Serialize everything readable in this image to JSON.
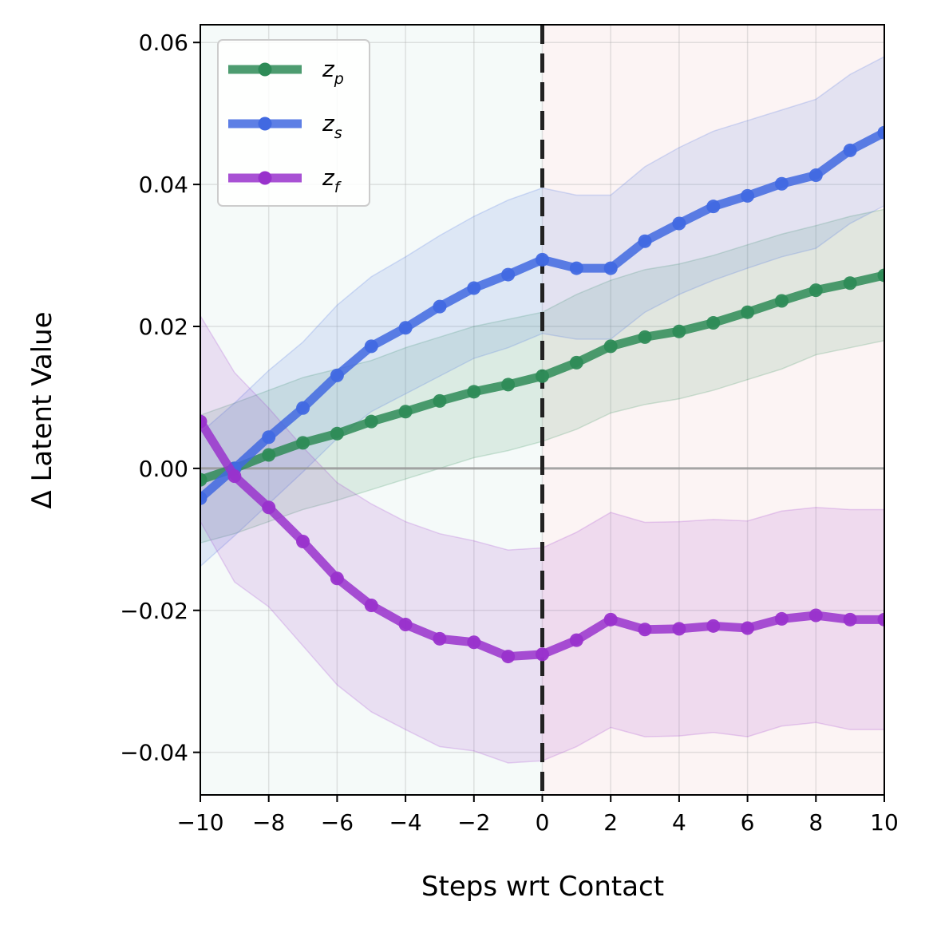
{
  "chart_data": {
    "type": "line",
    "xlabel": "Steps wrt Contact",
    "ylabel": "Δ Latent Value",
    "xlim": [
      -10,
      10
    ],
    "ylim": [
      -0.046,
      0.0625
    ],
    "x_ticks": [
      -10,
      -8,
      -6,
      -4,
      -2,
      0,
      2,
      4,
      6,
      8,
      10
    ],
    "x_tick_labels": [
      "−10",
      "−8",
      "−6",
      "−4",
      "−2",
      "0",
      "2",
      "4",
      "6",
      "8",
      "10"
    ],
    "y_ticks": [
      -0.04,
      -0.02,
      0.0,
      0.02,
      0.04,
      0.06
    ],
    "y_tick_labels": [
      "−0.04",
      "−0.02",
      "0.00",
      "0.02",
      "0.04",
      "0.06"
    ],
    "grid": true,
    "legend_position": "top-left",
    "contact_step": 0,
    "reference_line_y": 0,
    "regions": [
      {
        "name": "pre-contact",
        "x_range": [
          -10,
          0
        ],
        "color": "#e6f3f0"
      },
      {
        "name": "post-contact",
        "x_range": [
          0,
          10
        ],
        "color": "#f8e4e4"
      }
    ],
    "x": [
      -10,
      -9,
      -8,
      -7,
      -6,
      -5,
      -4,
      -3,
      -2,
      -1,
      0,
      1,
      2,
      3,
      4,
      5,
      6,
      7,
      8,
      9,
      10
    ],
    "series": [
      {
        "name": "z_p",
        "legend_main": "z",
        "legend_sub": "p",
        "color": "#2e8b57",
        "values": [
          -0.0016,
          0.0,
          0.0019,
          0.0036,
          0.0049,
          0.0066,
          0.008,
          0.0095,
          0.0108,
          0.0118,
          0.013,
          0.0149,
          0.0172,
          0.0185,
          0.0193,
          0.0205,
          0.022,
          0.0236,
          0.0251,
          0.0261,
          0.0272
        ],
        "upper": [
          0.0075,
          0.0092,
          0.011,
          0.0128,
          0.014,
          0.0152,
          0.017,
          0.0185,
          0.02,
          0.021,
          0.022,
          0.0245,
          0.0265,
          0.028,
          0.0288,
          0.03,
          0.0315,
          0.033,
          0.0342,
          0.0355,
          0.0365
        ],
        "lower": [
          -0.0105,
          -0.0092,
          -0.0075,
          -0.0058,
          -0.0045,
          -0.003,
          -0.0015,
          0.0,
          0.0015,
          0.0025,
          0.0038,
          0.0055,
          0.0078,
          0.009,
          0.0098,
          0.011,
          0.0125,
          0.014,
          0.016,
          0.017,
          0.018
        ]
      },
      {
        "name": "z_s",
        "legend_main": "z",
        "legend_sub": "s",
        "color": "#4169e1",
        "values": [
          -0.0042,
          0.0,
          0.0044,
          0.0085,
          0.0131,
          0.0172,
          0.0198,
          0.0228,
          0.0254,
          0.0273,
          0.0294,
          0.0282,
          0.0282,
          0.032,
          0.0345,
          0.0369,
          0.0384,
          0.0401,
          0.0413,
          0.0448,
          0.0473
        ],
        "upper": [
          0.005,
          0.0092,
          0.0138,
          0.0178,
          0.023,
          0.027,
          0.0298,
          0.0328,
          0.0355,
          0.0378,
          0.0395,
          0.0385,
          0.0385,
          0.0425,
          0.0452,
          0.0475,
          0.049,
          0.0505,
          0.052,
          0.0555,
          0.058
        ],
        "lower": [
          -0.0138,
          -0.0095,
          -0.005,
          -0.0005,
          0.0042,
          0.008,
          0.0105,
          0.013,
          0.0155,
          0.017,
          0.019,
          0.0182,
          0.0182,
          0.022,
          0.0245,
          0.0265,
          0.0282,
          0.0298,
          0.031,
          0.0345,
          0.037
        ]
      },
      {
        "name": "z_f",
        "legend_main": "z",
        "legend_sub": "f",
        "color": "#9932cc",
        "values": [
          0.0066,
          -0.0011,
          -0.0055,
          -0.0103,
          -0.0155,
          -0.0193,
          -0.022,
          -0.024,
          -0.0245,
          -0.0265,
          -0.0262,
          -0.0242,
          -0.0213,
          -0.0227,
          -0.0226,
          -0.0222,
          -0.0225,
          -0.0212,
          -0.0207,
          -0.0213,
          -0.0213
        ],
        "upper": [
          0.0215,
          0.0135,
          0.0085,
          0.003,
          -0.002,
          -0.005,
          -0.0075,
          -0.0092,
          -0.0102,
          -0.0115,
          -0.0112,
          -0.009,
          -0.0062,
          -0.0076,
          -0.0075,
          -0.0072,
          -0.0074,
          -0.006,
          -0.0055,
          -0.0058,
          -0.0058
        ],
        "lower": [
          -0.0075,
          -0.016,
          -0.0195,
          -0.025,
          -0.0305,
          -0.0343,
          -0.0368,
          -0.0392,
          -0.0398,
          -0.0415,
          -0.0412,
          -0.0392,
          -0.0365,
          -0.0378,
          -0.0377,
          -0.0372,
          -0.0378,
          -0.0363,
          -0.0358,
          -0.0368,
          -0.0368
        ]
      }
    ]
  }
}
